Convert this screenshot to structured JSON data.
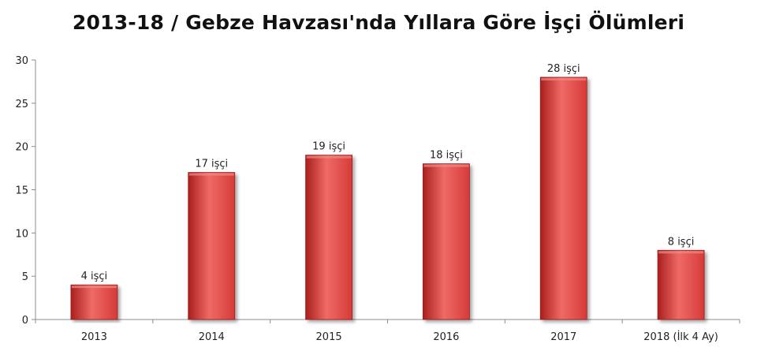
{
  "chart_data": {
    "type": "bar",
    "title": "2013-18 / Gebze Havzası'nda Yıllara Göre İşçi Ölümleri",
    "categories": [
      "2013",
      "2014",
      "2015",
      "2016",
      "2017",
      "2018 (İlk 4 Ay)"
    ],
    "values": [
      4,
      17,
      19,
      18,
      28,
      8
    ],
    "data_labels": [
      "4 işçi",
      "17 işçi",
      "19 işçi",
      "18 işçi",
      "28 işçi",
      "8 işçi"
    ],
    "ylim": [
      0,
      30
    ],
    "yticks": [
      0,
      5,
      10,
      15,
      20,
      25,
      30
    ],
    "xlabel": "",
    "ylabel": "",
    "grid": false,
    "legend": "none",
    "bar_color": "#d63b38",
    "bar_color_dark": "#a91f1d",
    "bar_color_light": "#ef6a66"
  }
}
